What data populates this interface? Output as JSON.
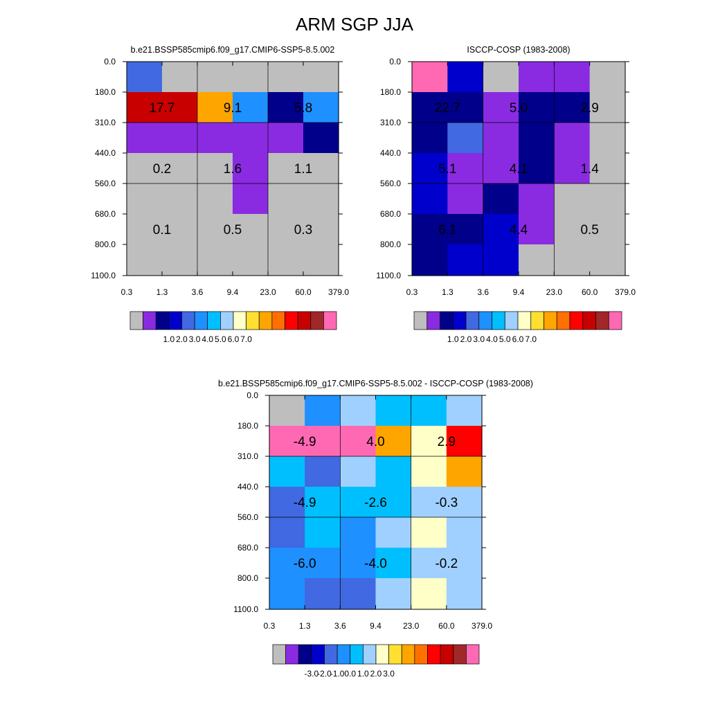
{
  "title": "ARM SGP JJA",
  "colors": {
    "frame": "#000000",
    "gridline": "#000000",
    "text": "#000000"
  },
  "chart_data": [
    {
      "type": "heatmap",
      "title": "b.e21.BSSP585cmip6.f09_g17.CMIP6-SSP5-8.5.002",
      "x_ticks": [
        "0.3",
        "1.3",
        "3.6",
        "9.4",
        "23.0",
        "60.0",
        "379.0"
      ],
      "y_ticks": [
        "0.0",
        "180.0",
        "310.0",
        "440.0",
        "560.0",
        "680.0",
        "800.0",
        "1100.0"
      ],
      "cell_colors": [
        [
          "#4169e1",
          "#bebebe",
          "#bebebe",
          "#bebebe",
          "#bebebe",
          "#bebebe"
        ],
        [
          "#c80000",
          "#c80000",
          "#ffa500",
          "#1e90ff",
          "#00008b",
          "#1e90ff"
        ],
        [
          "#8a2be2",
          "#8a2be2",
          "#8a2be2",
          "#8a2be2",
          "#8a2be2",
          "#00008b"
        ],
        [
          "#bebebe",
          "#bebebe",
          "#bebebe",
          "#8a2be2",
          "#bebebe",
          "#bebebe"
        ],
        [
          "#bebebe",
          "#bebebe",
          "#bebebe",
          "#8a2be2",
          "#bebebe",
          "#bebebe"
        ],
        [
          "#bebebe",
          "#bebebe",
          "#bebebe",
          "#bebebe",
          "#bebebe",
          "#bebebe"
        ],
        [
          "#bebebe",
          "#bebebe",
          "#bebebe",
          "#bebebe",
          "#bebebe",
          "#bebebe"
        ]
      ],
      "block_labels": [
        [
          "17.7",
          "9.1",
          "5.8"
        ],
        [
          "0.2",
          "1.6",
          "1.1"
        ],
        [
          "0.1",
          "0.5",
          "0.3"
        ]
      ],
      "colorbar": {
        "colors": [
          "#bebebe",
          "#8a2be2",
          "#00008b",
          "#0000cd",
          "#4169e1",
          "#1e90ff",
          "#00bfff",
          "#a0d0ff",
          "#ffffc8",
          "#ffe030",
          "#ffa500",
          "#ff7000",
          "#ff0000",
          "#c80000",
          "#a02828",
          "#ff69b4"
        ],
        "labels": [
          "1.0",
          "2.0",
          "3.0",
          "4.0",
          "5.0",
          "6.0",
          "7.0"
        ]
      }
    },
    {
      "type": "heatmap",
      "title": "ISCCP-COSP (1983-2008)",
      "x_ticks": [
        "0.3",
        "1.3",
        "3.6",
        "9.4",
        "23.0",
        "60.0",
        "379.0"
      ],
      "y_ticks": [
        "0.0",
        "180.0",
        "310.0",
        "440.0",
        "560.0",
        "680.0",
        "800.0",
        "1100.0"
      ],
      "cell_colors": [
        [
          "#ff69b4",
          "#0000cd",
          "#bebebe",
          "#8a2be2",
          "#8a2be2",
          "#bebebe"
        ],
        [
          "#00008b",
          "#00008b",
          "#8a2be2",
          "#00008b",
          "#00008b",
          "#bebebe"
        ],
        [
          "#00008b",
          "#4169e1",
          "#8a2be2",
          "#00008b",
          "#8a2be2",
          "#bebebe"
        ],
        [
          "#0000cd",
          "#8a2be2",
          "#8a2be2",
          "#00008b",
          "#8a2be2",
          "#bebebe"
        ],
        [
          "#0000cd",
          "#8a2be2",
          "#00008b",
          "#8a2be2",
          "#bebebe",
          "#bebebe"
        ],
        [
          "#00008b",
          "#00008b",
          "#0000cd",
          "#8a2be2",
          "#bebebe",
          "#bebebe"
        ],
        [
          "#00008b",
          "#0000cd",
          "#0000cd",
          "#bebebe",
          "#bebebe",
          "#bebebe"
        ]
      ],
      "block_labels": [
        [
          "22.7",
          "5.0",
          "2.9"
        ],
        [
          "5.1",
          "4.1",
          "1.4"
        ],
        [
          "6.1",
          "4.4",
          "0.5"
        ]
      ],
      "colorbar": {
        "colors": [
          "#bebebe",
          "#8a2be2",
          "#00008b",
          "#0000cd",
          "#4169e1",
          "#1e90ff",
          "#00bfff",
          "#a0d0ff",
          "#ffffc8",
          "#ffe030",
          "#ffa500",
          "#ff7000",
          "#ff0000",
          "#c80000",
          "#a02828",
          "#ff69b4"
        ],
        "labels": [
          "1.0",
          "2.0",
          "3.0",
          "4.0",
          "5.0",
          "6.0",
          "7.0"
        ]
      }
    },
    {
      "type": "heatmap",
      "title": "b.e21.BSSP585cmip6.f09_g17.CMIP6-SSP5-8.5.002 - ISCCP-COSP (1983-2008)",
      "x_ticks": [
        "0.3",
        "1.3",
        "3.6",
        "9.4",
        "23.0",
        "60.0",
        "379.0"
      ],
      "y_ticks": [
        "0.0",
        "180.0",
        "310.0",
        "440.0",
        "560.0",
        "680.0",
        "800.0",
        "1100.0"
      ],
      "cell_colors": [
        [
          "#bebebe",
          "#1e90ff",
          "#a0d0ff",
          "#00bfff",
          "#00bfff",
          "#a0d0ff"
        ],
        [
          "#ff69b4",
          "#ff69b4",
          "#ff69b4",
          "#ffa500",
          "#ffffc8",
          "#ff0000"
        ],
        [
          "#00bfff",
          "#4169e1",
          "#a0d0ff",
          "#00bfff",
          "#ffffc8",
          "#ffa500"
        ],
        [
          "#4169e1",
          "#00bfff",
          "#00bfff",
          "#00bfff",
          "#a0d0ff",
          "#a0d0ff"
        ],
        [
          "#4169e1",
          "#00bfff",
          "#1e90ff",
          "#a0d0ff",
          "#ffffc8",
          "#a0d0ff"
        ],
        [
          "#1e90ff",
          "#1e90ff",
          "#1e90ff",
          "#00bfff",
          "#a0d0ff",
          "#a0d0ff"
        ],
        [
          "#1e90ff",
          "#4169e1",
          "#4169e1",
          "#a0d0ff",
          "#ffffc8",
          "#a0d0ff"
        ]
      ],
      "block_labels": [
        [
          "-4.9",
          "4.0",
          "2.9"
        ],
        [
          "-4.9",
          "-2.6",
          "-0.3"
        ],
        [
          "-6.0",
          "-4.0",
          "-0.2"
        ]
      ],
      "colorbar": {
        "colors": [
          "#bebebe",
          "#8a2be2",
          "#00008b",
          "#0000cd",
          "#4169e1",
          "#1e90ff",
          "#00bfff",
          "#a0d0ff",
          "#ffffc8",
          "#ffe030",
          "#ffa500",
          "#ff7000",
          "#ff0000",
          "#c80000",
          "#a02828",
          "#ff69b4"
        ],
        "labels": [
          "-3.0",
          "-2.0",
          "-1.0",
          "0.0",
          "1.0",
          "2.0",
          "3.0"
        ]
      }
    }
  ]
}
